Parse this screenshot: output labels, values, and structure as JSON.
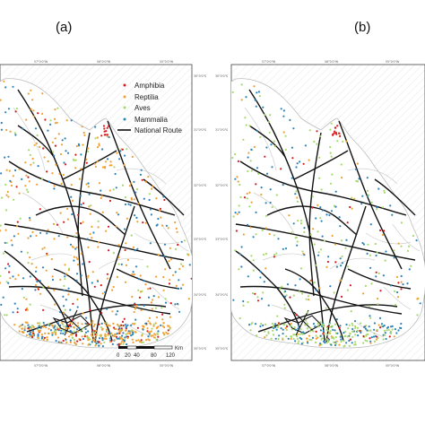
{
  "panels": [
    {
      "label": "(a)"
    },
    {
      "label": "(b)"
    }
  ],
  "legend": {
    "items": [
      {
        "label": "Amphibia",
        "color": "#d7191c",
        "symbol": "dot"
      },
      {
        "label": "Reptilia",
        "color": "#f0a030",
        "symbol": "dot"
      },
      {
        "label": "Aves",
        "color": "#a6d96a",
        "symbol": "dot"
      },
      {
        "label": "Mammalia",
        "color": "#2b83ba",
        "symbol": "dot"
      },
      {
        "label": "National Route",
        "color": "#111111",
        "symbol": "line"
      }
    ]
  },
  "scale_bar": {
    "ticks": [
      "0",
      "20",
      "40",
      "80",
      "120"
    ],
    "unit": "Km"
  },
  "top_ticks": [
    "57°0'0\"W",
    "56°0'0\"W",
    "55°0'0\"W"
  ],
  "bottom_ticks": [
    "57°0'0\"W",
    "56°0'0\"W",
    "55°0'0\"W"
  ],
  "right_ticks": [
    "30°0'0\"S",
    "31°0'0\"S",
    "32°0'0\"S",
    "33°0'0\"S",
    "34°0'0\"S",
    "35°0'0\"S"
  ],
  "left_ticks_b": [
    "30°0'0\"S",
    "31°0'0\"S",
    "32°0'0\"S",
    "33°0'0\"S",
    "34°0'0\"S",
    "35°0'0\"S"
  ]
}
